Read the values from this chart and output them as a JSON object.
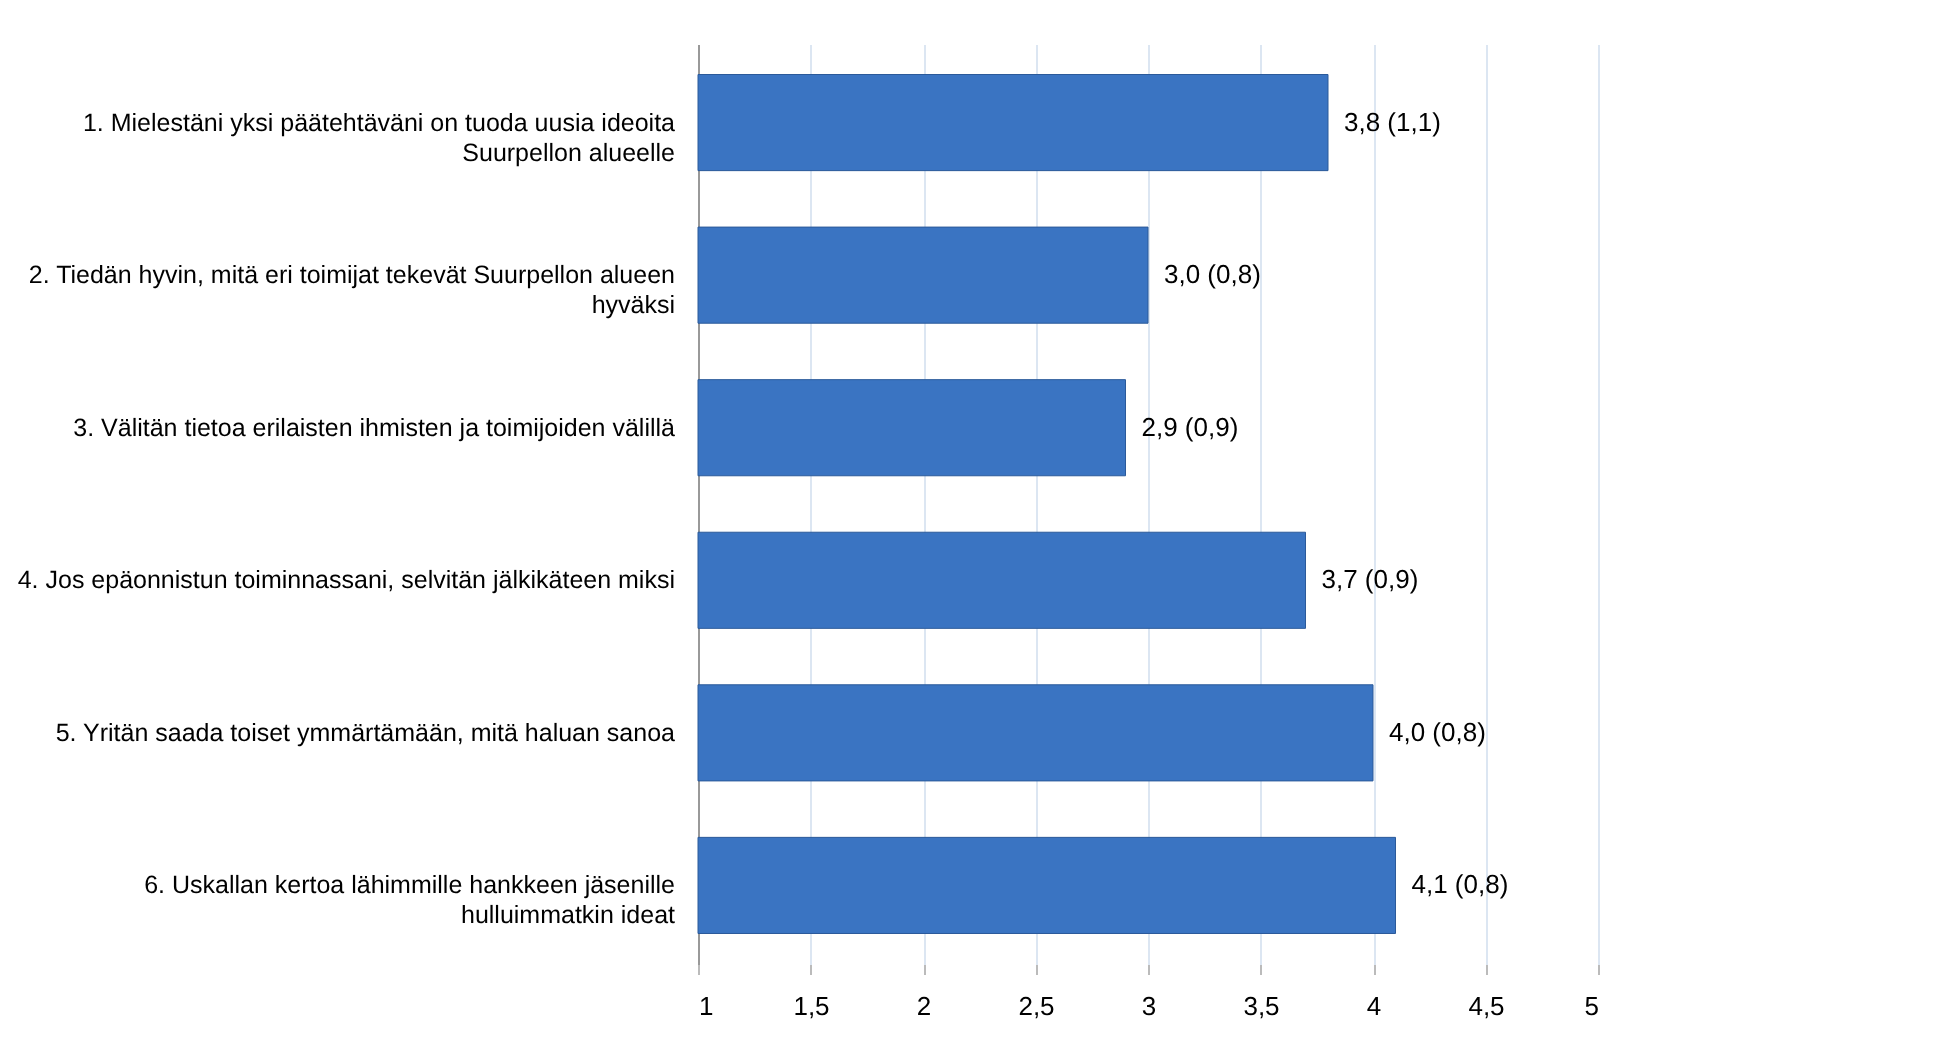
{
  "chart_data": {
    "type": "bar",
    "orientation": "horizontal",
    "categories": [
      "1. Mielestäni yksi päätehtäväni on tuoda uusia ideoita Suurpellon alueelle",
      "2. Tiedän hyvin, mitä eri toimijat tekevät Suurpellon alueen hyväksi",
      "3. Välitän tietoa erilaisten ihmisten ja toimijoiden välillä",
      "4. Jos epäonnistun toiminnassani, selvitän jälkikäteen miksi",
      "5. Yritän saada toiset ymmärtämään, mitä haluan sanoa",
      "6. Uskallan kertoa lähimmille hankkeen jäsenille hulluimmatkin ideat"
    ],
    "values": [
      3.8,
      3.0,
      2.9,
      3.7,
      4.0,
      4.1
    ],
    "value_labels": [
      "3,8 (1,1)",
      "3,0 (0,8)",
      "2,9 (0,9)",
      "3,7 (0,9)",
      "4,0 (0,8)",
      "4,1 (0,8)"
    ],
    "color": "#3a74c2",
    "xlim": [
      1,
      5
    ],
    "xticks": [
      1,
      {
        "value": 1.5,
        "label": "1,5"
      },
      2,
      {
        "value": 2.5,
        "label": "2,5"
      },
      3,
      {
        "value": 3.5,
        "label": "3,5"
      },
      4,
      {
        "value": 4.5,
        "label": "4,5"
      },
      5
    ],
    "grid": "x"
  }
}
